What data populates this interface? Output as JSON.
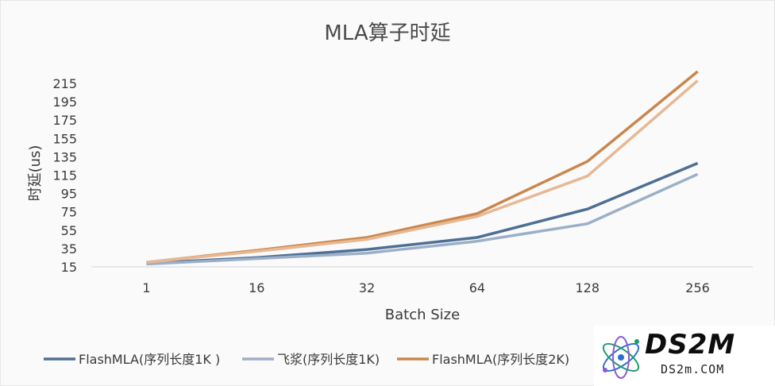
{
  "chart_data": {
    "type": "line",
    "title": "MLA算子时延",
    "xlabel": "Batch Size",
    "ylabel": "时延(us)",
    "categories": [
      "1",
      "16",
      "32",
      "64",
      "128",
      "256"
    ],
    "yticks": [
      15,
      35,
      55,
      75,
      95,
      115,
      135,
      155,
      175,
      195,
      215
    ],
    "ylim": [
      15,
      235
    ],
    "grid": false,
    "legend_position": "bottom",
    "series": [
      {
        "name": "FlashMLA(序列长度1K )",
        "color": "#4f6f95",
        "values": [
          19,
          25,
          34,
          47,
          78,
          128
        ]
      },
      {
        "name": "飞浆(序列长度1K)",
        "color": "#9bb0c8",
        "values": [
          18,
          24,
          30,
          43,
          62,
          116
        ]
      },
      {
        "name": "FlashMLA(序列长度2K)",
        "color": "#c9874d",
        "values": [
          20,
          33,
          47,
          73,
          130,
          228
        ]
      },
      {
        "name": "",
        "color": "#e7b894",
        "values": [
          20,
          32,
          45,
          70,
          114,
          218
        ]
      }
    ]
  },
  "watermark": {
    "logo": "DS2M",
    "site": "DS2m.COM"
  }
}
